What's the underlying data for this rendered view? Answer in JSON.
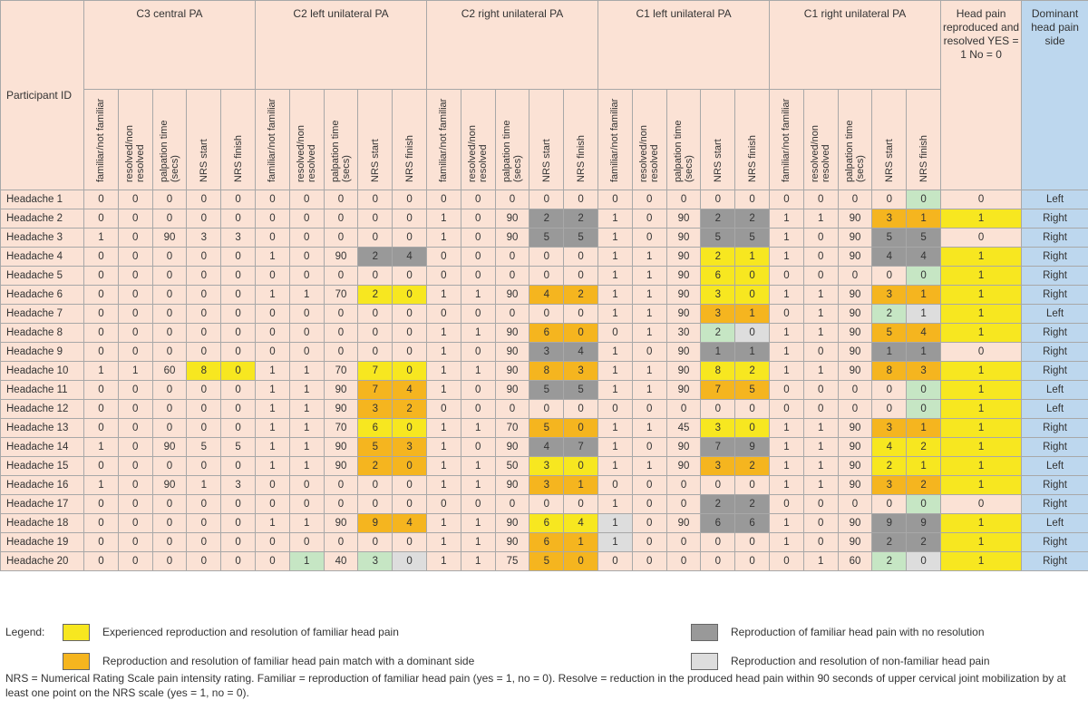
{
  "header": {
    "participant_label": "Participant ID",
    "groups": [
      "C3 central PA",
      "C2 left unilateral PA",
      "C2 right unilateral PA",
      "C1 left unilateral PA",
      "C1 right unilateral PA"
    ],
    "subheaders": [
      "familiar/not familiar",
      "resolved/non resolved",
      "palpation time (secs)",
      "NRS start",
      "NRS finish"
    ],
    "head_pain": "Head pain reproduced and resolved YES = 1 No = 0",
    "dominant": "Dominant head pain side"
  },
  "cell_colors": {
    "Y": "#f7e720",
    "O": "#f5b51f",
    "D": "#999999",
    "L": "#dddddd",
    "G": "#c6e6c4"
  },
  "rows": [
    {
      "id": "Headache 1",
      "vals": [
        "0",
        "0",
        "0",
        "0",
        "0",
        "0",
        "0",
        "0",
        "0",
        "0",
        "0",
        "0",
        "0",
        "0",
        "0",
        "0",
        "0",
        "0",
        "0",
        "0",
        "0",
        "0",
        "0",
        "0",
        "0",
        "0",
        "Left"
      ],
      "colors": {
        "24": "G"
      }
    },
    {
      "id": "Headache 2",
      "vals": [
        "0",
        "0",
        "0",
        "0",
        "0",
        "0",
        "0",
        "0",
        "0",
        "0",
        "1",
        "0",
        "90",
        "2",
        "2",
        "1",
        "0",
        "90",
        "2",
        "2",
        "1",
        "1",
        "90",
        "3",
        "1",
        "1",
        "Right"
      ],
      "colors": {
        "13": "D",
        "14": "D",
        "18": "D",
        "19": "D",
        "23": "O",
        "24": "O",
        "25": "Y"
      }
    },
    {
      "id": "Headache 3",
      "vals": [
        "1",
        "0",
        "90",
        "3",
        "3",
        "0",
        "0",
        "0",
        "0",
        "0",
        "1",
        "0",
        "90",
        "5",
        "5",
        "1",
        "0",
        "90",
        "5",
        "5",
        "1",
        "0",
        "90",
        "5",
        "5",
        "0",
        "Right"
      ],
      "colors": {
        "13": "D",
        "14": "D",
        "18": "D",
        "19": "D",
        "23": "D",
        "24": "D"
      }
    },
    {
      "id": "Headache 4",
      "vals": [
        "0",
        "0",
        "0",
        "0",
        "0",
        "1",
        "0",
        "90",
        "2",
        "4",
        "0",
        "0",
        "0",
        "0",
        "0",
        "1",
        "1",
        "90",
        "2",
        "1",
        "1",
        "0",
        "90",
        "4",
        "4",
        "1",
        "Right"
      ],
      "colors": {
        "8": "D",
        "9": "D",
        "18": "Y",
        "19": "Y",
        "23": "D",
        "24": "D",
        "25": "Y"
      }
    },
    {
      "id": "Headache 5",
      "vals": [
        "0",
        "0",
        "0",
        "0",
        "0",
        "0",
        "0",
        "0",
        "0",
        "0",
        "0",
        "0",
        "0",
        "0",
        "0",
        "1",
        "1",
        "90",
        "6",
        "0",
        "0",
        "0",
        "0",
        "0",
        "0",
        "1",
        "Right"
      ],
      "colors": {
        "18": "Y",
        "19": "Y",
        "24": "G",
        "25": "Y"
      }
    },
    {
      "id": "Headache 6",
      "vals": [
        "0",
        "0",
        "0",
        "0",
        "0",
        "1",
        "1",
        "70",
        "2",
        "0",
        "1",
        "1",
        "90",
        "4",
        "2",
        "1",
        "1",
        "90",
        "3",
        "0",
        "1",
        "1",
        "90",
        "3",
        "1",
        "1",
        "Right"
      ],
      "colors": {
        "8": "Y",
        "9": "Y",
        "13": "O",
        "14": "O",
        "18": "Y",
        "19": "Y",
        "23": "O",
        "24": "O",
        "25": "Y"
      }
    },
    {
      "id": "Headache 7",
      "vals": [
        "0",
        "0",
        "0",
        "0",
        "0",
        "0",
        "0",
        "0",
        "0",
        "0",
        "0",
        "0",
        "0",
        "0",
        "0",
        "1",
        "1",
        "90",
        "3",
        "1",
        "0",
        "1",
        "90",
        "2",
        "1",
        "1",
        "Left"
      ],
      "colors": {
        "18": "O",
        "19": "O",
        "23": "G",
        "24": "L",
        "25": "Y"
      }
    },
    {
      "id": "Headache 8",
      "vals": [
        "0",
        "0",
        "0",
        "0",
        "0",
        "0",
        "0",
        "0",
        "0",
        "0",
        "1",
        "1",
        "90",
        "6",
        "0",
        "0",
        "1",
        "30",
        "2",
        "0",
        "1",
        "1",
        "90",
        "5",
        "4",
        "1",
        "Right"
      ],
      "colors": {
        "13": "O",
        "14": "O",
        "18": "G",
        "19": "L",
        "23": "O",
        "24": "O",
        "25": "Y"
      }
    },
    {
      "id": "Headache 9",
      "vals": [
        "0",
        "0",
        "0",
        "0",
        "0",
        "0",
        "0",
        "0",
        "0",
        "0",
        "1",
        "0",
        "90",
        "3",
        "4",
        "1",
        "0",
        "90",
        "1",
        "1",
        "1",
        "0",
        "90",
        "1",
        "1",
        "0",
        "Right"
      ],
      "colors": {
        "13": "D",
        "14": "D",
        "18": "D",
        "19": "D",
        "23": "D",
        "24": "D"
      }
    },
    {
      "id": "Headache 10",
      "vals": [
        "1",
        "1",
        "60",
        "8",
        "0",
        "1",
        "1",
        "70",
        "7",
        "0",
        "1",
        "1",
        "90",
        "8",
        "3",
        "1",
        "1",
        "90",
        "8",
        "2",
        "1",
        "1",
        "90",
        "8",
        "3",
        "1",
        "Right"
      ],
      "colors": {
        "3": "Y",
        "4": "Y",
        "8": "Y",
        "9": "Y",
        "13": "O",
        "14": "O",
        "18": "Y",
        "19": "Y",
        "23": "O",
        "24": "O",
        "25": "Y"
      }
    },
    {
      "id": "Headache 11",
      "vals": [
        "0",
        "0",
        "0",
        "0",
        "0",
        "1",
        "1",
        "90",
        "7",
        "4",
        "1",
        "0",
        "90",
        "5",
        "5",
        "1",
        "1",
        "90",
        "7",
        "5",
        "0",
        "0",
        "0",
        "0",
        "0",
        "1",
        "Left"
      ],
      "colors": {
        "8": "O",
        "9": "O",
        "13": "D",
        "14": "D",
        "18": "O",
        "19": "O",
        "24": "G",
        "25": "Y"
      }
    },
    {
      "id": "Headache 12",
      "vals": [
        "0",
        "0",
        "0",
        "0",
        "0",
        "1",
        "1",
        "90",
        "3",
        "2",
        "0",
        "0",
        "0",
        "0",
        "0",
        "0",
        "0",
        "0",
        "0",
        "0",
        "0",
        "0",
        "0",
        "0",
        "0",
        "1",
        "Left"
      ],
      "colors": {
        "8": "O",
        "9": "O",
        "24": "G",
        "25": "Y"
      }
    },
    {
      "id": "Headache 13",
      "vals": [
        "0",
        "0",
        "0",
        "0",
        "0",
        "1",
        "1",
        "70",
        "6",
        "0",
        "1",
        "1",
        "70",
        "5",
        "0",
        "1",
        "1",
        "45",
        "3",
        "0",
        "1",
        "1",
        "90",
        "3",
        "1",
        "1",
        "Right"
      ],
      "colors": {
        "8": "Y",
        "9": "Y",
        "13": "O",
        "14": "O",
        "18": "Y",
        "19": "Y",
        "23": "O",
        "24": "O",
        "25": "Y"
      }
    },
    {
      "id": "Headache 14",
      "vals": [
        "1",
        "0",
        "90",
        "5",
        "5",
        "1",
        "1",
        "90",
        "5",
        "3",
        "1",
        "0",
        "90",
        "4",
        "7",
        "1",
        "0",
        "90",
        "7",
        "9",
        "1",
        "1",
        "90",
        "4",
        "2",
        "1",
        "Right"
      ],
      "colors": {
        "8": "O",
        "9": "O",
        "13": "D",
        "14": "D",
        "18": "D",
        "19": "D",
        "23": "Y",
        "24": "Y",
        "25": "Y"
      }
    },
    {
      "id": "Headache 15",
      "vals": [
        "0",
        "0",
        "0",
        "0",
        "0",
        "1",
        "1",
        "90",
        "2",
        "0",
        "1",
        "1",
        "50",
        "3",
        "0",
        "1",
        "1",
        "90",
        "3",
        "2",
        "1",
        "1",
        "90",
        "2",
        "1",
        "1",
        "Left"
      ],
      "colors": {
        "8": "O",
        "9": "O",
        "13": "Y",
        "14": "Y",
        "18": "O",
        "19": "O",
        "23": "Y",
        "24": "Y",
        "25": "Y"
      }
    },
    {
      "id": "Headache 16",
      "vals": [
        "1",
        "0",
        "90",
        "1",
        "3",
        "0",
        "0",
        "0",
        "0",
        "0",
        "1",
        "1",
        "90",
        "3",
        "1",
        "0",
        "0",
        "0",
        "0",
        "0",
        "1",
        "1",
        "90",
        "3",
        "2",
        "1",
        "Right"
      ],
      "colors": {
        "13": "O",
        "14": "O",
        "23": "O",
        "24": "O",
        "25": "Y"
      }
    },
    {
      "id": "Headache 17",
      "vals": [
        "0",
        "0",
        "0",
        "0",
        "0",
        "0",
        "0",
        "0",
        "0",
        "0",
        "0",
        "0",
        "0",
        "0",
        "0",
        "1",
        "0",
        "0",
        "2",
        "2",
        "0",
        "0",
        "0",
        "0",
        "0",
        "0",
        "Right"
      ],
      "colors": {
        "18": "D",
        "19": "D",
        "24": "G"
      }
    },
    {
      "id": "Headache 18",
      "vals": [
        "0",
        "0",
        "0",
        "0",
        "0",
        "1",
        "1",
        "90",
        "9",
        "4",
        "1",
        "1",
        "90",
        "6",
        "4",
        "1",
        "0",
        "90",
        "6",
        "6",
        "1",
        "0",
        "90",
        "9",
        "9",
        "1",
        "Left"
      ],
      "colors": {
        "8": "O",
        "9": "O",
        "13": "Y",
        "14": "Y",
        "15": "L",
        "18": "D",
        "19": "D",
        "23": "D",
        "24": "D",
        "25": "Y"
      }
    },
    {
      "id": "Headache 19",
      "vals": [
        "0",
        "0",
        "0",
        "0",
        "0",
        "0",
        "0",
        "0",
        "0",
        "0",
        "1",
        "1",
        "90",
        "6",
        "1",
        "1",
        "0",
        "0",
        "0",
        "0",
        "1",
        "0",
        "90",
        "2",
        "2",
        "1",
        "Right"
      ],
      "colors": {
        "13": "O",
        "14": "O",
        "15": "L",
        "23": "D",
        "24": "D",
        "25": "Y"
      }
    },
    {
      "id": "Headache 20",
      "vals": [
        "0",
        "0",
        "0",
        "0",
        "0",
        "0",
        "1",
        "40",
        "3",
        "0",
        "1",
        "1",
        "75",
        "5",
        "0",
        "0",
        "0",
        "0",
        "0",
        "0",
        "0",
        "1",
        "60",
        "2",
        "0",
        "1",
        "Right"
      ],
      "colors": {
        "6": "G",
        "8": "G",
        "9": "L",
        "13": "O",
        "14": "O",
        "23": "G",
        "24": "L",
        "25": "Y"
      }
    }
  ],
  "legend": {
    "title": "Legend:",
    "items": [
      {
        "text": "Experienced reproduction and resolution of familiar head pain",
        "color": "#f7e720"
      },
      {
        "text": "Reproduction and resolution of familiar head pain match with a dominant side",
        "color": "#f5b51f"
      },
      {
        "text": "Reproduction of familiar head pain with no resolution",
        "color": "#999999"
      },
      {
        "text": "Reproduction and resolution of non-familiar head pain",
        "color": "#dddddd"
      }
    ]
  },
  "footnote": "NRS = Numerical Rating Scale pain intensity rating. Familiar = reproduction of familiar head pain (yes = 1, no = 0). Resolve = reduction in the produced head pain within 90 seconds of upper cervical joint mobilization by at least one point on the NRS scale (yes = 1, no = 0)."
}
